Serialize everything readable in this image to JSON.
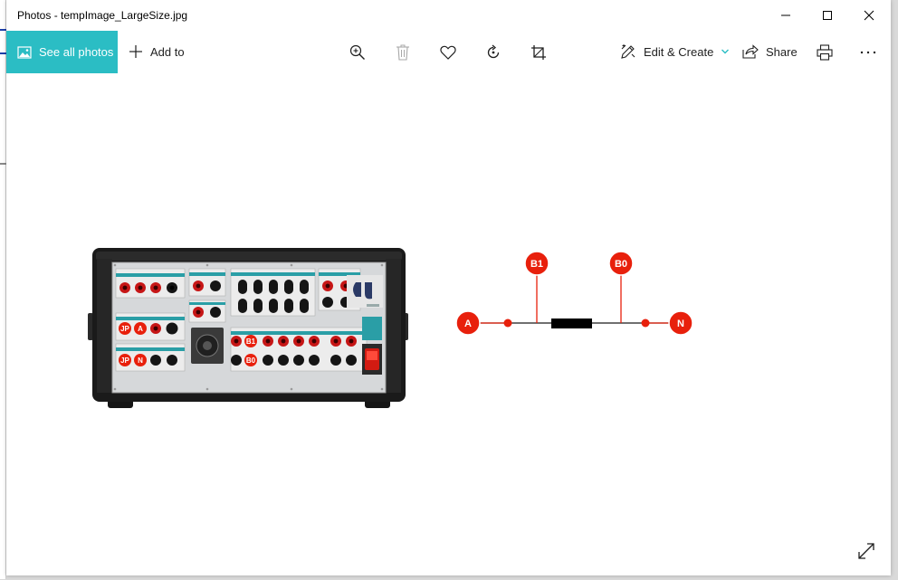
{
  "window": {
    "title": "Photos - tempImage_LargeSize.jpg"
  },
  "toolbar": {
    "see_all_label": "See all photos",
    "add_to_label": "Add to",
    "edit_create_label": "Edit & Create",
    "share_label": "Share"
  },
  "diagram": {
    "node_a": "A",
    "node_b1": "B1",
    "node_b0": "B0",
    "node_n": "N"
  },
  "device": {
    "label_jp1": "JP",
    "label_a": "A",
    "label_jp2": "JP",
    "label_n": "N",
    "label_b1": "B1",
    "label_b0": "B0"
  },
  "colors": {
    "accent": "#2bbdc4",
    "node_red": "#e8200c",
    "teal_strip": "#2a9ea6"
  }
}
